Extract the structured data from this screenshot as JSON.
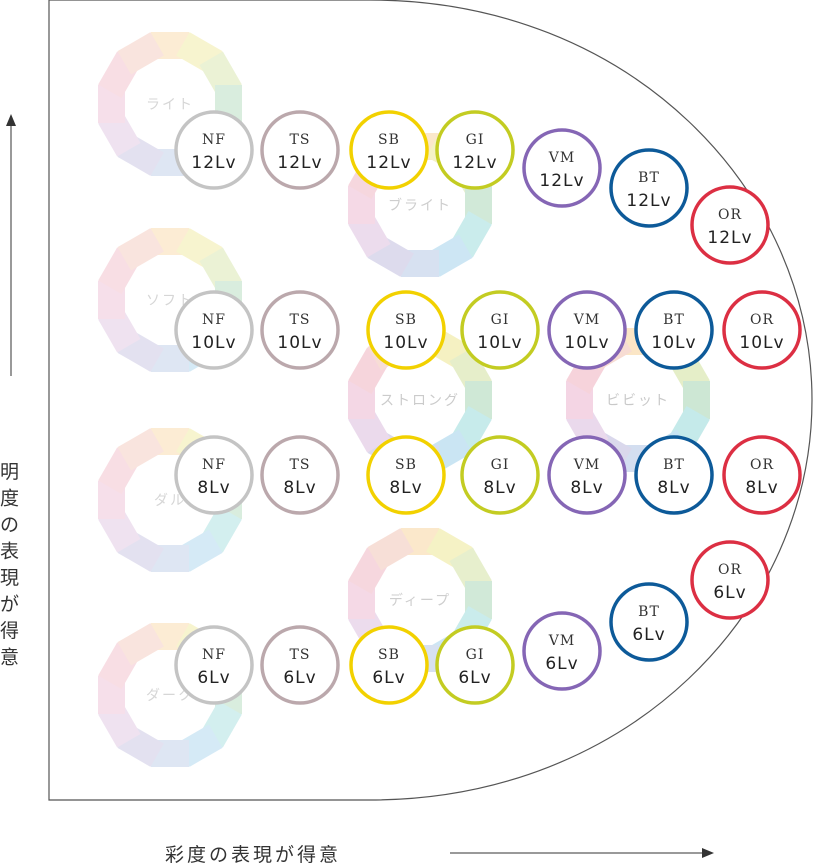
{
  "axes": {
    "vertical_label": "明度の表現が得意",
    "horizontal_label": "彩度の表現が得意"
  },
  "wheel_colors": [
    "#fbe6c6",
    "#f5f1bf",
    "#e5eec8",
    "#cde7d4",
    "#c5eaea",
    "#c8e4f3",
    "#d3def0",
    "#dad8ec",
    "#ead9ec",
    "#f4d5e4",
    "#f6d3db",
    "#f7dcd3"
  ],
  "wheels": [
    {
      "id": "light",
      "label": "ライト",
      "opacity": 0.75
    },
    {
      "id": "soft",
      "label": "ソフト",
      "opacity": 0.75
    },
    {
      "id": "dull",
      "label": "ダル",
      "opacity": 0.75
    },
    {
      "id": "dark",
      "label": "ダーク",
      "opacity": 0.75
    },
    {
      "id": "bright",
      "label": "ブライト",
      "opacity": 0.9
    },
    {
      "id": "strong",
      "label": "ストロング",
      "opacity": 0.95
    },
    {
      "id": "deep",
      "label": "ディープ",
      "opacity": 0.9
    },
    {
      "id": "vivid",
      "label": "ビビット",
      "opacity": 1.0
    }
  ],
  "series": [
    {
      "name": "NF",
      "color": "#c4c4c4"
    },
    {
      "name": "TS",
      "color": "#bba8ac"
    },
    {
      "name": "SB",
      "color": "#f2d100"
    },
    {
      "name": "GI",
      "color": "#c3cc22"
    },
    {
      "name": "VM",
      "color": "#8566b5"
    },
    {
      "name": "BT",
      "color": "#0d5a99"
    },
    {
      "name": "OR",
      "color": "#dc2f43"
    }
  ],
  "circles": [
    {
      "name": "NF",
      "level": "12Lv"
    },
    {
      "name": "TS",
      "level": "12Lv"
    },
    {
      "name": "SB",
      "level": "12Lv"
    },
    {
      "name": "GI",
      "level": "12Lv"
    },
    {
      "name": "VM",
      "level": "12Lv"
    },
    {
      "name": "BT",
      "level": "12Lv"
    },
    {
      "name": "OR",
      "level": "12Lv"
    },
    {
      "name": "NF",
      "level": "10Lv"
    },
    {
      "name": "TS",
      "level": "10Lv"
    },
    {
      "name": "SB",
      "level": "10Lv"
    },
    {
      "name": "GI",
      "level": "10Lv"
    },
    {
      "name": "VM",
      "level": "10Lv"
    },
    {
      "name": "BT",
      "level": "10Lv"
    },
    {
      "name": "OR",
      "level": "10Lv"
    },
    {
      "name": "NF",
      "level": "8Lv"
    },
    {
      "name": "TS",
      "level": "8Lv"
    },
    {
      "name": "SB",
      "level": "8Lv"
    },
    {
      "name": "GI",
      "level": "8Lv"
    },
    {
      "name": "VM",
      "level": "8Lv"
    },
    {
      "name": "BT",
      "level": "8Lv"
    },
    {
      "name": "OR",
      "level": "8Lv"
    },
    {
      "name": "NF",
      "level": "6Lv"
    },
    {
      "name": "TS",
      "level": "6Lv"
    },
    {
      "name": "SB",
      "level": "6Lv"
    },
    {
      "name": "GI",
      "level": "6Lv"
    },
    {
      "name": "VM",
      "level": "6Lv"
    },
    {
      "name": "BT",
      "level": "6Lv"
    },
    {
      "name": "OR",
      "level": "6Lv"
    }
  ]
}
